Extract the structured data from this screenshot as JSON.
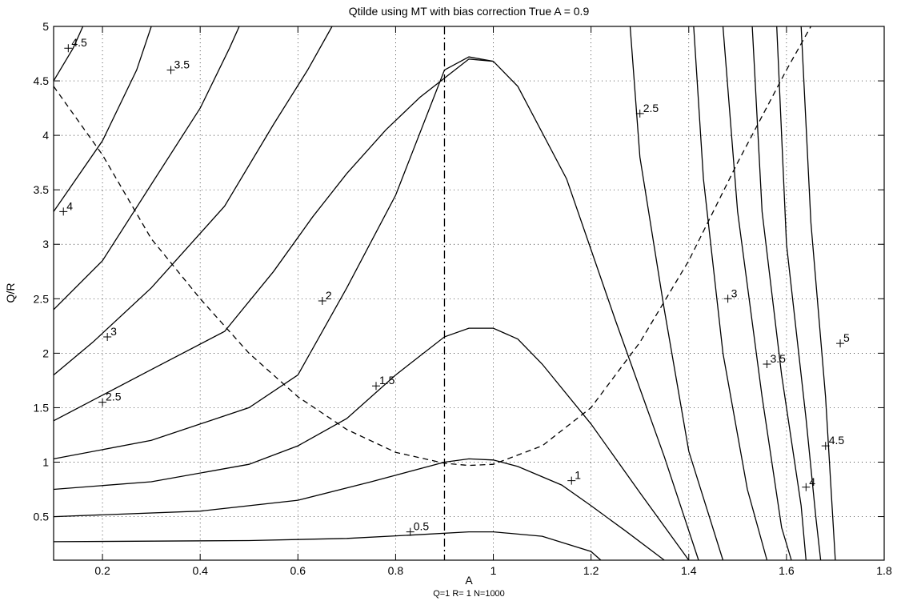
{
  "chart_data": {
    "type": "contour",
    "title": "Qtilde using MT with bias correction  True A = 0.9",
    "xlabel": "A",
    "ylabel": "Q/R",
    "subcaption": "Q=1 R= 1 N=1000",
    "xlim": [
      0.1,
      1.8
    ],
    "ylim": [
      0.1,
      5
    ],
    "x_ticks": [
      "0.2",
      "0.4",
      "0.6",
      "0.8",
      "1",
      "1.2",
      "1.4",
      "1.6",
      "1.8"
    ],
    "x_tick_values": [
      0.2,
      0.4,
      0.6,
      0.8,
      1,
      1.2,
      1.4,
      1.6,
      1.8
    ],
    "y_ticks": [
      "0.5",
      "1",
      "1.5",
      "2",
      "2.5",
      "3",
      "3.5",
      "4",
      "4.5",
      "5"
    ],
    "y_tick_values": [
      0.5,
      1,
      1.5,
      2,
      2.5,
      3,
      3.5,
      4,
      4.5,
      5
    ],
    "grid": true,
    "true_A": 0.9,
    "contours": [
      {
        "level": "0.5",
        "points": [
          [
            0.1,
            0.27
          ],
          [
            0.5,
            0.28
          ],
          [
            0.7,
            0.3
          ],
          [
            0.83,
            0.33
          ],
          [
            0.95,
            0.36
          ],
          [
            1.0,
            0.36
          ],
          [
            1.1,
            0.32
          ],
          [
            1.2,
            0.18
          ],
          [
            1.22,
            0.1
          ]
        ]
      },
      {
        "level": "1",
        "points": [
          [
            0.1,
            0.5
          ],
          [
            0.4,
            0.55
          ],
          [
            0.6,
            0.65
          ],
          [
            0.75,
            0.82
          ],
          [
            0.9,
            1.0
          ],
          [
            0.95,
            1.03
          ],
          [
            1.0,
            1.02
          ],
          [
            1.05,
            0.96
          ],
          [
            1.14,
            0.79
          ],
          [
            1.2,
            0.6
          ],
          [
            1.27,
            0.37
          ],
          [
            1.35,
            0.1
          ]
        ]
      },
      {
        "level": "",
        "points": [
          [
            0.1,
            0.75
          ],
          [
            0.3,
            0.82
          ],
          [
            0.5,
            0.98
          ],
          [
            0.6,
            1.15
          ],
          [
            0.7,
            1.4
          ],
          [
            0.8,
            1.8
          ],
          [
            0.9,
            2.15
          ],
          [
            0.95,
            2.23
          ],
          [
            1.0,
            2.23
          ],
          [
            1.05,
            2.13
          ],
          [
            1.1,
            1.9
          ],
          [
            1.2,
            1.35
          ],
          [
            1.3,
            0.72
          ],
          [
            1.4,
            0.1
          ]
        ]
      },
      {
        "level": "1.5",
        "points": [
          [
            0.1,
            1.03
          ],
          [
            0.3,
            1.2
          ],
          [
            0.5,
            1.5
          ],
          [
            0.6,
            1.8
          ],
          [
            0.7,
            2.6
          ],
          [
            0.8,
            3.45
          ],
          [
            0.9,
            4.6
          ],
          [
            0.95,
            4.72
          ],
          [
            1.0,
            4.68
          ],
          [
            1.05,
            4.45
          ],
          [
            1.15,
            3.6
          ],
          [
            1.25,
            2.3
          ],
          [
            1.35,
            1.05
          ],
          [
            1.42,
            0.1
          ]
        ]
      },
      {
        "level": "2",
        "points": [
          [
            0.1,
            1.38
          ],
          [
            0.3,
            1.85
          ],
          [
            0.45,
            2.2
          ],
          [
            0.55,
            2.75
          ],
          [
            0.63,
            3.25
          ],
          [
            0.7,
            3.65
          ],
          [
            0.78,
            4.05
          ],
          [
            0.85,
            4.35
          ],
          [
            0.95,
            4.7
          ],
          [
            1.0,
            4.68
          ]
        ]
      },
      {
        "level": "2.5",
        "points": [
          [
            0.1,
            1.8
          ],
          [
            0.18,
            2.1
          ],
          [
            0.3,
            2.6
          ],
          [
            0.45,
            3.35
          ],
          [
            0.55,
            4.1
          ],
          [
            0.62,
            4.6
          ],
          [
            0.67,
            5.0
          ]
        ]
      },
      {
        "level": "3",
        "points": [
          [
            0.1,
            2.4
          ],
          [
            0.2,
            2.85
          ],
          [
            0.3,
            3.55
          ],
          [
            0.4,
            4.25
          ],
          [
            0.46,
            4.8
          ],
          [
            0.48,
            5.0
          ]
        ]
      },
      {
        "level": "3.5",
        "points": [
          [
            0.1,
            3.3
          ],
          [
            0.2,
            3.95
          ],
          [
            0.27,
            4.6
          ],
          [
            0.3,
            5.0
          ]
        ]
      },
      {
        "level": "4",
        "points": [
          [
            0.1,
            4.5
          ],
          [
            0.14,
            4.8
          ],
          [
            0.16,
            5.0
          ]
        ]
      },
      {
        "level": "2.5",
        "points": [
          [
            1.28,
            5.0
          ],
          [
            1.3,
            3.8
          ],
          [
            1.35,
            2.4
          ],
          [
            1.4,
            1.1
          ],
          [
            1.47,
            0.1
          ]
        ]
      },
      {
        "level": "3",
        "points": [
          [
            1.41,
            5.0
          ],
          [
            1.43,
            3.6
          ],
          [
            1.47,
            2.0
          ],
          [
            1.52,
            0.75
          ],
          [
            1.56,
            0.1
          ]
        ]
      },
      {
        "level": "3.5",
        "points": [
          [
            1.47,
            5.0
          ],
          [
            1.5,
            3.3
          ],
          [
            1.55,
            1.6
          ],
          [
            1.59,
            0.4
          ],
          [
            1.61,
            0.1
          ]
        ]
      },
      {
        "level": "4",
        "points": [
          [
            1.53,
            5.0
          ],
          [
            1.55,
            3.3
          ],
          [
            1.59,
            1.8
          ],
          [
            1.63,
            0.6
          ],
          [
            1.64,
            0.1
          ]
        ]
      },
      {
        "level": "4.5",
        "points": [
          [
            1.58,
            5.0
          ],
          [
            1.6,
            3.0
          ],
          [
            1.64,
            1.4
          ],
          [
            1.66,
            0.5
          ],
          [
            1.67,
            0.1
          ]
        ]
      },
      {
        "level": "5",
        "points": [
          [
            1.63,
            5.0
          ],
          [
            1.65,
            3.2
          ],
          [
            1.68,
            1.6
          ],
          [
            1.7,
            0.1
          ]
        ]
      }
    ],
    "contour_labels": [
      {
        "text": "0.5",
        "x": 0.83,
        "y": 0.36
      },
      {
        "text": "1",
        "x": 1.16,
        "y": 0.83
      },
      {
        "text": "1.5",
        "x": 0.76,
        "y": 1.7
      },
      {
        "text": "2",
        "x": 0.65,
        "y": 2.48
      },
      {
        "text": "2.5",
        "x": 0.2,
        "y": 1.55
      },
      {
        "text": "3",
        "x": 0.21,
        "y": 2.15
      },
      {
        "text": "3.5",
        "x": 0.34,
        "y": 4.6
      },
      {
        "text": "4",
        "x": 0.12,
        "y": 3.3
      },
      {
        "text": "4.5",
        "x": 0.13,
        "y": 4.8
      },
      {
        "text": "2.5",
        "x": 1.3,
        "y": 4.2
      },
      {
        "text": "3",
        "x": 1.48,
        "y": 2.5
      },
      {
        "text": "3.5",
        "x": 1.56,
        "y": 1.9
      },
      {
        "text": "4",
        "x": 1.64,
        "y": 0.77
      },
      {
        "text": "4.5",
        "x": 1.68,
        "y": 1.15
      },
      {
        "text": "5",
        "x": 1.71,
        "y": 2.09
      }
    ],
    "dashed_curve": [
      [
        0.1,
        4.45
      ],
      [
        0.2,
        3.82
      ],
      [
        0.3,
        3.05
      ],
      [
        0.4,
        2.5
      ],
      [
        0.5,
        2.0
      ],
      [
        0.6,
        1.6
      ],
      [
        0.7,
        1.3
      ],
      [
        0.8,
        1.09
      ],
      [
        0.9,
        0.99
      ],
      [
        0.95,
        0.97
      ],
      [
        1.0,
        0.98
      ],
      [
        1.1,
        1.15
      ],
      [
        1.2,
        1.5
      ],
      [
        1.3,
        2.1
      ],
      [
        1.4,
        2.85
      ],
      [
        1.5,
        3.75
      ],
      [
        1.6,
        4.6
      ],
      [
        1.65,
        5.0
      ]
    ],
    "true_A_line": {
      "x": 0.9,
      "style": "dash-dot"
    }
  }
}
